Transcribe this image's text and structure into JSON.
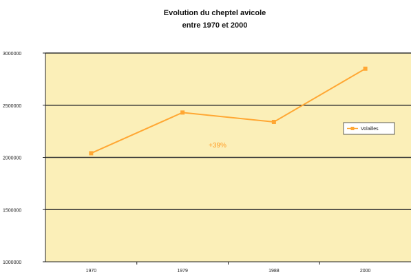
{
  "chart_data": {
    "type": "line",
    "title_line1": "Evolution du cheptel avicole",
    "title_line2": "entre 1970 et 2000",
    "categories": [
      "1970",
      "1979",
      "1988",
      "2000"
    ],
    "series": [
      {
        "name": "Volailles",
        "values": [
          2040000,
          2430000,
          2340000,
          2850000
        ],
        "color": "#ffa733"
      }
    ],
    "y_ticks": [
      "1000000",
      "1500000",
      "2000000",
      "2500000",
      "3000000"
    ],
    "ylim": [
      1000000,
      3000000
    ],
    "annotation": "+39%",
    "legend_position": "right",
    "grid": true,
    "plot_background": "#fbefb8"
  }
}
